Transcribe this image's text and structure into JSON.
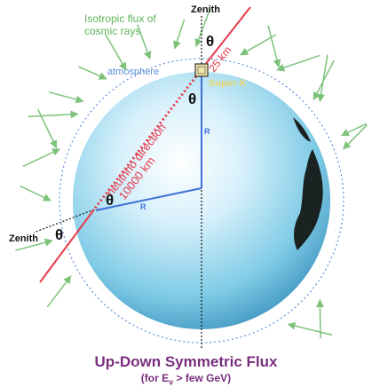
{
  "labels": {
    "flux": [
      "Isotropic flux of",
      "cosmic rays"
    ],
    "zenith_top": "Zenith",
    "zenith_left": "Zenith",
    "atmosphere": "atmosphere",
    "detector": "Super-K",
    "distance_short": "25 km",
    "direction": "neutrino direction",
    "distance_long": "10000 km",
    "theta": "θ",
    "radius": "R"
  },
  "footer": {
    "title": "Up-Down Symmetric Flux",
    "subtitle_prefix": "(for E",
    "subtitle_sub": "ν",
    "subtitle_suffix": " > few GeV)"
  },
  "colors": {
    "flux_text": "#5fb35a",
    "arrow": "#7ec27a",
    "ray": "#e8394a",
    "radius_line": "#3d6fd8",
    "atmosphere": "#5e8fd8",
    "detector_label": "#e9d86a",
    "title": "#7a2f7e"
  }
}
